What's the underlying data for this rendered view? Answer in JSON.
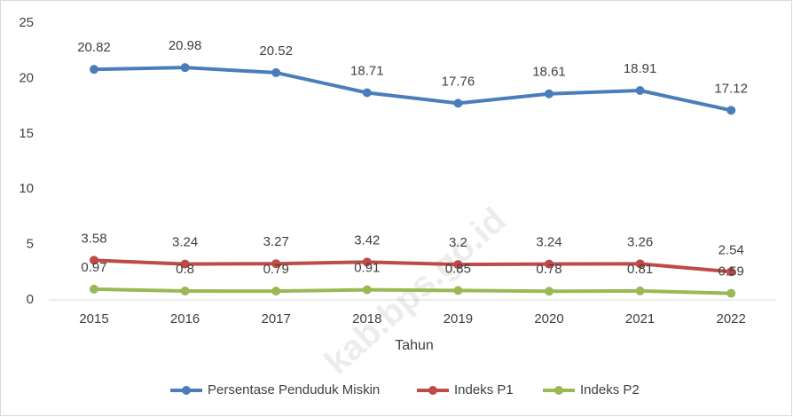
{
  "chart_data": {
    "type": "line",
    "x_label": "Tahun",
    "watermark": "kab.bps.go.id",
    "categories": [
      "2015",
      "2016",
      "2017",
      "2018",
      "2019",
      "2020",
      "2021",
      "2022"
    ],
    "series": [
      {
        "name": "Persentase Penduduk Miskin",
        "color": "#4a7ebb",
        "values": [
          20.82,
          20.98,
          20.52,
          18.71,
          17.76,
          18.61,
          18.91,
          17.12
        ]
      },
      {
        "name": "Indeks P1",
        "color": "#be4b48",
        "values": [
          3.58,
          3.24,
          3.27,
          3.42,
          3.2,
          3.24,
          3.26,
          2.54
        ]
      },
      {
        "name": "Indeks P2",
        "color": "#98b954",
        "values": [
          0.97,
          0.8,
          0.79,
          0.91,
          0.85,
          0.78,
          0.81,
          0.59
        ]
      }
    ],
    "ylim": [
      0,
      25
    ],
    "yticks": [
      0,
      5,
      10,
      15,
      20,
      25
    ],
    "grid": false,
    "legend": "bottom"
  }
}
